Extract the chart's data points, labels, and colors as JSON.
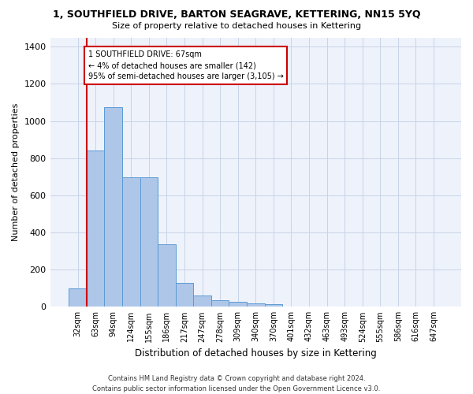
{
  "title": "1, SOUTHFIELD DRIVE, BARTON SEAGRAVE, KETTERING, NN15 5YQ",
  "subtitle": "Size of property relative to detached houses in Kettering",
  "xlabel": "Distribution of detached houses by size in Kettering",
  "ylabel": "Number of detached properties",
  "bar_values": [
    98,
    840,
    1075,
    695,
    695,
    335,
    130,
    60,
    35,
    25,
    18,
    12,
    0,
    0,
    0,
    0,
    0,
    0,
    0,
    0,
    0
  ],
  "bar_labels": [
    "32sqm",
    "63sqm",
    "94sqm",
    "124sqm",
    "155sqm",
    "186sqm",
    "217sqm",
    "247sqm",
    "278sqm",
    "309sqm",
    "340sqm",
    "370sqm",
    "401sqm",
    "432sqm",
    "463sqm",
    "493sqm",
    "524sqm",
    "555sqm",
    "586sqm",
    "616sqm",
    "647sqm"
  ],
  "bar_color": "#aec6e8",
  "bar_edge_color": "#5b9bd5",
  "annotation_line1": "1 SOUTHFIELD DRIVE: 67sqm",
  "annotation_line2": "← 4% of detached houses are smaller (142)",
  "annotation_line3": "95% of semi-detached houses are larger (3,105) →",
  "annotation_box_color": "#cc0000",
  "property_line_x": 0.5,
  "ylim": [
    0,
    1450
  ],
  "yticks": [
    0,
    200,
    400,
    600,
    800,
    1000,
    1200,
    1400
  ],
  "footer_line1": "Contains HM Land Registry data © Crown copyright and database right 2024.",
  "footer_line2": "Contains public sector information licensed under the Open Government Licence v3.0.",
  "bg_color": "#eef2fb",
  "grid_color": "#c8d4e8"
}
